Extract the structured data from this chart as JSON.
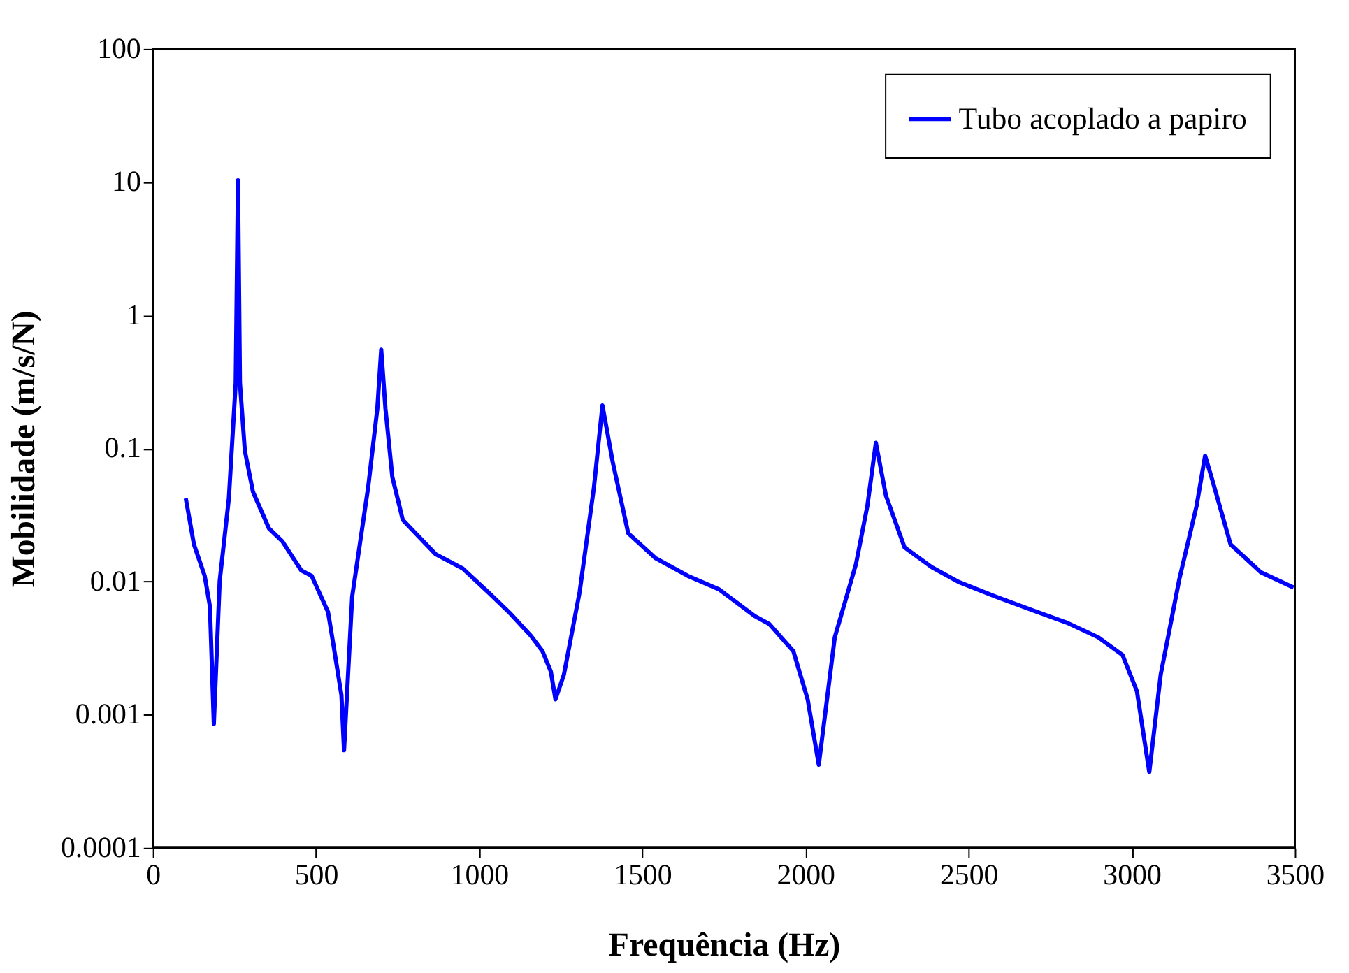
{
  "chart_data": {
    "type": "line",
    "xlabel": "Frequência (Hz)",
    "ylabel": "Mobilidade (m/s/N)",
    "xlim": [
      0,
      3500
    ],
    "xticks": [
      0,
      500,
      1000,
      1500,
      2000,
      2500,
      3000,
      3500
    ],
    "ylim": [
      0.0001,
      100
    ],
    "yticks": [
      0.0001,
      0.001,
      0.01,
      0.1,
      1,
      10,
      100
    ],
    "log": "y",
    "grid": false,
    "legend": "top right",
    "line_style": "solid",
    "marker": "none",
    "series": [
      {
        "name": "Tubo acoplado a papiro",
        "color": "#0000ff",
        "x": [
          101,
          126,
          159,
          175,
          187,
          205,
          233,
          254,
          261,
          267,
          282,
          307,
          356,
          397,
          455,
          487,
          537,
          553,
          578,
          586,
          611,
          660,
          688,
          700,
          713,
          734,
          766,
          867,
          950,
          1028,
          1094,
          1159,
          1194,
          1220,
          1234,
          1260,
          1308,
          1352,
          1378,
          1409,
          1457,
          1540,
          1640,
          1736,
          1845,
          1889,
          1963,
          2007,
          2041,
          2090,
          2155,
          2190,
          2216,
          2247,
          2304,
          2387,
          2470,
          2583,
          2702,
          2802,
          2898,
          2972,
          3016,
          3054,
          3089,
          3146,
          3199,
          3225,
          3247,
          3303,
          3396,
          3496
        ],
        "values": [
          0.042,
          0.019,
          0.011,
          0.0065,
          0.00085,
          0.0101,
          0.042,
          0.31,
          10.3,
          0.31,
          0.096,
          0.047,
          0.025,
          0.02,
          0.0121,
          0.011,
          0.0059,
          0.0034,
          0.0014,
          0.00054,
          0.0077,
          0.051,
          0.198,
          0.55,
          0.198,
          0.061,
          0.029,
          0.016,
          0.0125,
          0.0083,
          0.0058,
          0.0039,
          0.003,
          0.0021,
          0.0013,
          0.002,
          0.0083,
          0.051,
          0.21,
          0.08,
          0.023,
          0.015,
          0.011,
          0.0087,
          0.0055,
          0.0048,
          0.003,
          0.0013,
          0.00042,
          0.0038,
          0.0135,
          0.037,
          0.11,
          0.044,
          0.018,
          0.0128,
          0.0099,
          0.0077,
          0.006,
          0.0049,
          0.0038,
          0.0028,
          0.0015,
          0.00037,
          0.002,
          0.0104,
          0.037,
          0.088,
          0.058,
          0.019,
          0.0117,
          0.009
        ]
      }
    ]
  }
}
